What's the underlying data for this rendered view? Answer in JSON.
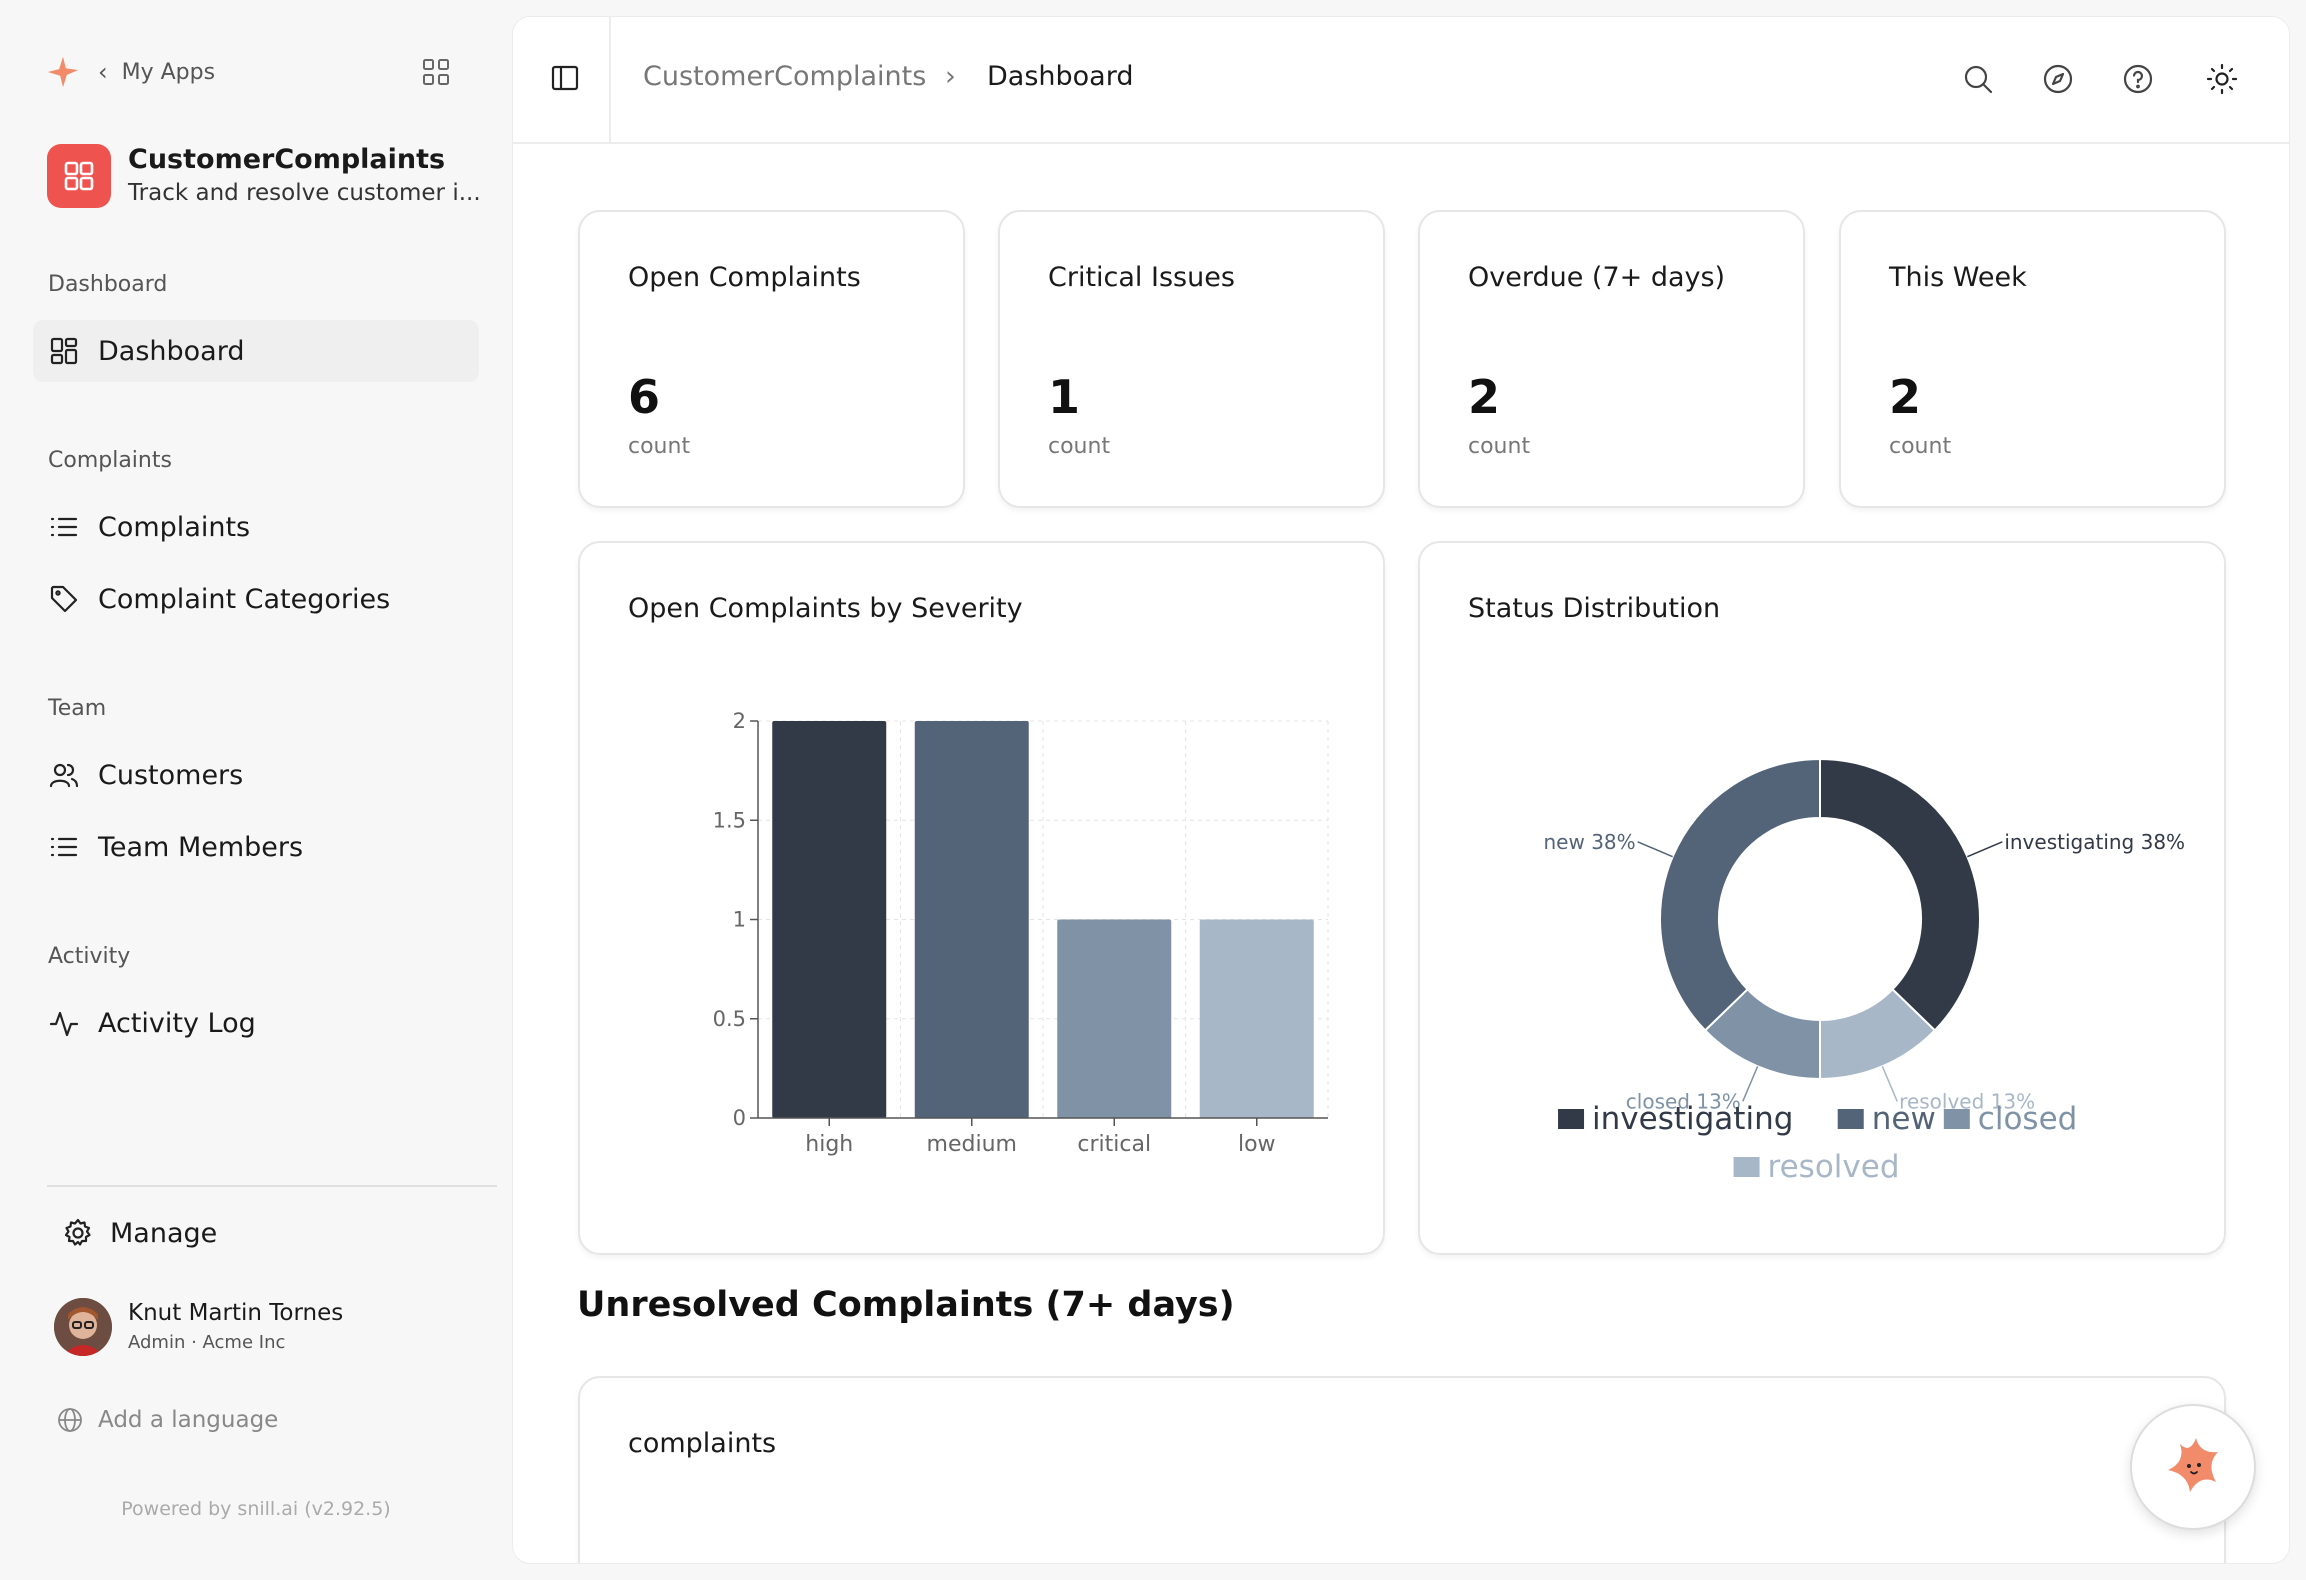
{
  "sidebar": {
    "back_label": "My Apps",
    "app": {
      "name": "CustomerComplaints",
      "description": "Track and resolve customer i..."
    },
    "sections": [
      {
        "label": "Dashboard",
        "items": [
          {
            "label": "Dashboard",
            "icon": "dashboard-icon",
            "active": true
          }
        ]
      },
      {
        "label": "Complaints",
        "items": [
          {
            "label": "Complaints",
            "icon": "list-icon"
          },
          {
            "label": "Complaint Categories",
            "icon": "tag-icon"
          }
        ]
      },
      {
        "label": "Team",
        "items": [
          {
            "label": "Customers",
            "icon": "users-icon"
          },
          {
            "label": "Team Members",
            "icon": "list-icon"
          }
        ]
      },
      {
        "label": "Activity",
        "items": [
          {
            "label": "Activity Log",
            "icon": "activity-icon"
          }
        ]
      }
    ],
    "manage_label": "Manage",
    "user": {
      "name": "Knut Martin Tornes",
      "role": "Admin · Acme Inc"
    },
    "language_label": "Add a language",
    "powered_by": "Powered by snill.ai (v2.92.5)"
  },
  "header": {
    "breadcrumb": [
      "CustomerComplaints",
      "Dashboard"
    ],
    "breadcrumb_separator": "›"
  },
  "stats": [
    {
      "title": "Open Complaints",
      "value": "6",
      "unit": "count"
    },
    {
      "title": "Critical Issues",
      "value": "1",
      "unit": "count"
    },
    {
      "title": "Overdue (7+ days)",
      "value": "2",
      "unit": "count"
    },
    {
      "title": "This Week",
      "value": "2",
      "unit": "count"
    }
  ],
  "severity_panel": {
    "title": "Open Complaints by Severity"
  },
  "status_panel": {
    "title": "Status Distribution"
  },
  "unresolved": {
    "title": "Unresolved Complaints (7+ days)",
    "table_title": "complaints"
  },
  "colors": {
    "accent": "#ef5350",
    "dark": "#323a48",
    "slate": "#536378",
    "steel": "#7f92a6",
    "light": "#a8b7c7"
  },
  "chart_data": [
    {
      "type": "bar",
      "title": "Open Complaints by Severity",
      "categories": [
        "high",
        "medium",
        "critical",
        "low"
      ],
      "values": [
        2,
        2,
        1,
        1
      ],
      "colors": [
        "#323a48",
        "#536378",
        "#7f92a6",
        "#a8b7c7"
      ],
      "ylim": [
        0,
        2
      ],
      "yticks": [
        "0",
        "0.5",
        "1",
        "1.5",
        "2"
      ],
      "grid": true
    },
    {
      "type": "pie",
      "title": "Status Distribution",
      "donut": true,
      "labels": [
        "investigating",
        "resolved",
        "closed",
        "new"
      ],
      "values": [
        38,
        13,
        13,
        38
      ],
      "slice_labels": [
        "investigating 38%",
        "resolved 13%",
        "closed 13%",
        "new 38%"
      ],
      "colors": [
        "#323a48",
        "#a8b7c7",
        "#7f92a6",
        "#536378"
      ],
      "legend": [
        "investigating",
        "new",
        "closed",
        "resolved"
      ],
      "legend_colors": [
        "#323a48",
        "#536378",
        "#7f92a6",
        "#a8b7c7"
      ],
      "legend_position": "bottom"
    }
  ]
}
